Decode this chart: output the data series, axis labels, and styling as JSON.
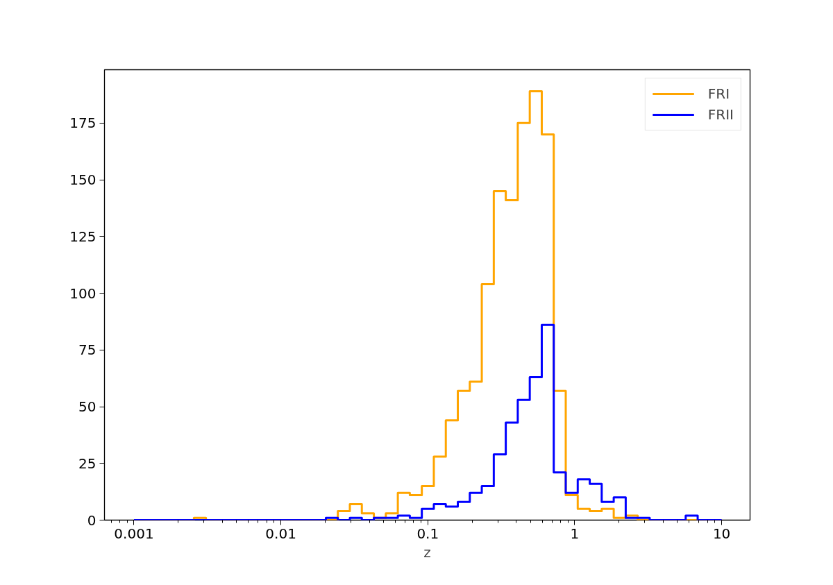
{
  "chart_data": {
    "type": "histogram",
    "xlabel": "z",
    "log": "x",
    "legend": "top right",
    "grid": false,
    "bins": [
      0.001,
      0.001207,
      0.001456,
      0.001758,
      0.002121,
      0.00256,
      0.003089,
      0.003728,
      0.004498,
      0.005429,
      0.006551,
      0.007906,
      0.009541,
      0.01151,
      0.0139,
      0.01677,
      0.02024,
      0.02442,
      0.02947,
      0.03556,
      0.04292,
      0.05179,
      0.06251,
      0.07543,
      0.09103,
      0.1099,
      0.1326,
      0.16,
      0.1931,
      0.233,
      0.2812,
      0.3393,
      0.4095,
      0.4942,
      0.5964,
      0.7197,
      0.8685,
      1.048,
      1.265,
      1.526,
      1.842,
      2.223,
      2.683,
      3.237,
      3.907,
      4.715,
      5.69,
      6.866,
      8.286,
      10
    ],
    "series": [
      {
        "name": "FRI",
        "color": "#ffa500",
        "values": [
          0,
          0,
          0,
          0,
          0,
          1,
          0,
          0,
          0,
          0,
          0,
          0,
          0,
          0,
          0,
          0,
          0,
          4,
          7,
          3,
          1,
          3,
          12,
          11,
          15,
          28,
          44,
          57,
          61,
          104,
          145,
          141,
          175,
          189,
          170,
          57,
          11,
          5,
          4,
          5,
          1,
          2,
          0,
          0,
          0,
          0,
          0,
          0,
          0
        ]
      },
      {
        "name": "FRII",
        "color": "#0000ff",
        "values": [
          0,
          0,
          0,
          0,
          0,
          0,
          0,
          0,
          0,
          0,
          0,
          0,
          0,
          0,
          0,
          0,
          1,
          0,
          1,
          0,
          1,
          1,
          2,
          1,
          5,
          7,
          6,
          8,
          12,
          15,
          29,
          43,
          53,
          63,
          86,
          21,
          12,
          18,
          16,
          8,
          10,
          1,
          1,
          0,
          0,
          0,
          2,
          0,
          0
        ]
      }
    ],
    "xlim": [
      0.00063,
      15.6
    ],
    "ylim": [
      0,
      198.5
    ],
    "xticks": [
      0.001,
      0.01,
      0.1,
      1,
      10
    ],
    "yticks": [
      0,
      25,
      50,
      75,
      100,
      125,
      150,
      175
    ]
  }
}
